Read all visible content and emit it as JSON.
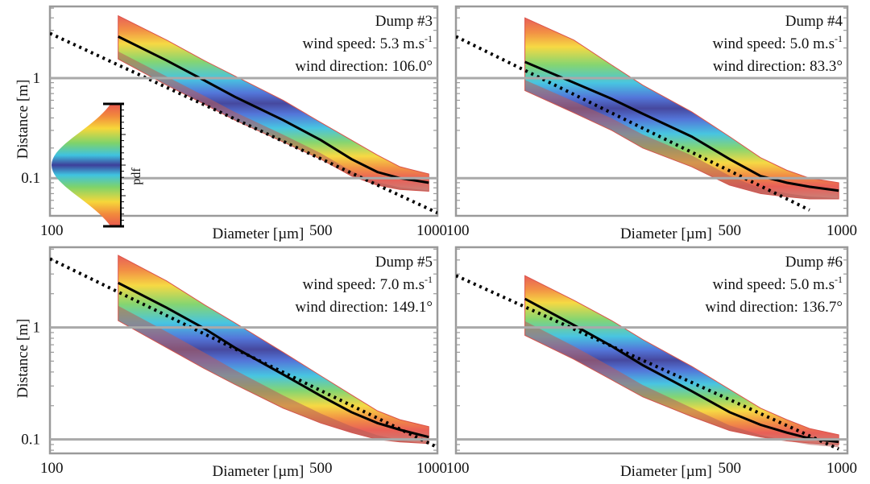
{
  "chart_data": [
    {
      "type": "area",
      "title": "Dump #3",
      "info": {
        "speed_label": "wind speed: 5.3 m.s",
        "speed_sup": "-1",
        "direction_label": "wind direction: 106.0°"
      },
      "xlabel": "Diameter [µm]",
      "ylabel": "Distance [m]",
      "xscale": "log",
      "yscale": "log",
      "xlim": [
        100,
        1000
      ],
      "ylim": [
        0.042,
        5.2
      ],
      "xticks": [
        {
          "v": 100,
          "label": "100"
        },
        {
          "v": 500,
          "label": "500"
        },
        {
          "v": 1000,
          "label": "1000"
        }
      ],
      "yticks": [
        {
          "v": 1,
          "label": "1"
        },
        {
          "v": 0.1,
          "label": "0.1"
        }
      ],
      "x": [
        150,
        200,
        250,
        300,
        400,
        500,
        600,
        700,
        800,
        950
      ],
      "median": [
        2.6,
        1.5,
        0.95,
        0.65,
        0.38,
        0.24,
        0.155,
        0.115,
        0.1,
        0.09
      ],
      "band_low": [
        1.55,
        0.85,
        0.55,
        0.38,
        0.23,
        0.155,
        0.105,
        0.085,
        0.077,
        0.074
      ],
      "band_high": [
        4.2,
        2.4,
        1.5,
        1.05,
        0.6,
        0.36,
        0.24,
        0.17,
        0.13,
        0.11
      ],
      "fit_line": {
        "x": [
          100,
          1000
        ],
        "y": [
          2.8,
          0.045
        ]
      },
      "show_pdf_colorbar": true,
      "pdf_label": "pdf"
    },
    {
      "type": "area",
      "title": "Dump #4",
      "info": {
        "speed_label": "wind speed: 5.0 m.s",
        "speed_sup": "-1",
        "direction_label": "wind direction: 83.3°"
      },
      "xlabel": "Diameter [µm]",
      "ylabel": "",
      "xscale": "log",
      "yscale": "log",
      "xlim": [
        100,
        1000
      ],
      "ylim": [
        0.042,
        5.2
      ],
      "xticks": [
        {
          "v": 100,
          "label": "100"
        },
        {
          "v": 500,
          "label": "500"
        },
        {
          "v": 1000,
          "label": "1000"
        }
      ],
      "yticks": [],
      "x": [
        150,
        200,
        250,
        300,
        400,
        500,
        600,
        700,
        800,
        950
      ],
      "median": [
        1.45,
        0.9,
        0.62,
        0.44,
        0.26,
        0.155,
        0.105,
        0.09,
        0.082,
        0.075
      ],
      "band_low": [
        0.75,
        0.45,
        0.3,
        0.2,
        0.13,
        0.085,
        0.07,
        0.065,
        0.062,
        0.062
      ],
      "band_high": [
        4.0,
        2.4,
        1.35,
        0.85,
        0.46,
        0.26,
        0.16,
        0.12,
        0.1,
        0.09
      ],
      "fit_line": {
        "x": [
          100,
          800
        ],
        "y": [
          2.6,
          0.048
        ]
      },
      "show_pdf_colorbar": false
    },
    {
      "type": "area",
      "title": "Dump #5",
      "info": {
        "speed_label": "wind speed: 7.0 m.s",
        "speed_sup": "-1",
        "direction_label": "wind direction: 149.1°"
      },
      "xlabel": "Diameter [µm]",
      "ylabel": "Distance [m]",
      "xscale": "log",
      "yscale": "log",
      "xlim": [
        100,
        1000
      ],
      "ylim": [
        0.075,
        5.2
      ],
      "xticks": [
        {
          "v": 100,
          "label": "100"
        },
        {
          "v": 500,
          "label": "500"
        },
        {
          "v": 1000,
          "label": "1000"
        }
      ],
      "yticks": [
        {
          "v": 1,
          "label": "1"
        },
        {
          "v": 0.1,
          "label": "0.1"
        }
      ],
      "x": [
        150,
        200,
        250,
        300,
        400,
        500,
        600,
        700,
        800,
        950
      ],
      "median": [
        2.5,
        1.5,
        0.98,
        0.66,
        0.38,
        0.245,
        0.175,
        0.14,
        0.122,
        0.105
      ],
      "band_low": [
        1.15,
        0.66,
        0.43,
        0.31,
        0.19,
        0.14,
        0.115,
        0.1,
        0.095,
        0.092
      ],
      "band_high": [
        4.4,
        2.6,
        1.6,
        1.1,
        0.6,
        0.37,
        0.25,
        0.18,
        0.15,
        0.13
      ],
      "fit_line": {
        "x": [
          100,
          1000
        ],
        "y": [
          4.1,
          0.085
        ]
      },
      "show_pdf_colorbar": false
    },
    {
      "type": "area",
      "title": "Dump #6",
      "info": {
        "speed_label": "wind speed: 5.0 m.s",
        "speed_sup": "-1",
        "direction_label": "wind direction: 136.7°"
      },
      "xlabel": "Diameter [µm]",
      "ylabel": "",
      "xscale": "log",
      "yscale": "log",
      "xlim": [
        100,
        1000
      ],
      "ylim": [
        0.075,
        5.2
      ],
      "xticks": [
        {
          "v": 100,
          "label": "100"
        },
        {
          "v": 500,
          "label": "500"
        },
        {
          "v": 1000,
          "label": "1000"
        }
      ],
      "yticks": [],
      "x": [
        150,
        200,
        250,
        300,
        400,
        500,
        600,
        700,
        800,
        950
      ],
      "median": [
        1.8,
        1.05,
        0.68,
        0.46,
        0.27,
        0.175,
        0.135,
        0.115,
        0.102,
        0.095
      ],
      "band_low": [
        0.85,
        0.52,
        0.34,
        0.24,
        0.16,
        0.12,
        0.105,
        0.097,
        0.093,
        0.09
      ],
      "band_high": [
        2.9,
        1.75,
        1.15,
        0.78,
        0.45,
        0.28,
        0.19,
        0.15,
        0.125,
        0.11
      ],
      "fit_line": {
        "x": [
          100,
          950
        ],
        "y": [
          2.9,
          0.082
        ]
      },
      "show_pdf_colorbar": false
    }
  ]
}
